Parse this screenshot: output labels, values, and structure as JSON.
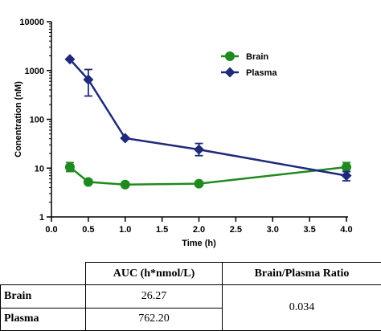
{
  "chart_data": {
    "type": "line",
    "xlabel": "Time (h)",
    "ylabel": "Conentration (nM)",
    "xlim": [
      0.0,
      4.0
    ],
    "ylim": [
      1,
      10000
    ],
    "yscale": "log",
    "x_ticks": [
      "0.0",
      "0.5",
      "1.0",
      "1.5",
      "2.0",
      "2.5",
      "3.0",
      "3.5",
      "4.0"
    ],
    "y_ticks": [
      "1",
      "10",
      "100",
      "1000",
      "10000"
    ],
    "legend_position": "top-right",
    "series": [
      {
        "name": "Brain",
        "color": "#1f8a1f",
        "marker": "circle",
        "points": [
          {
            "x": 0.25,
            "y": 10.5,
            "err_low": 8.5,
            "err_high": 13
          },
          {
            "x": 0.5,
            "y": 5.2
          },
          {
            "x": 1.0,
            "y": 4.6
          },
          {
            "x": 2.0,
            "y": 4.8
          },
          {
            "x": 4.0,
            "y": 10.5,
            "err_low": 8.5,
            "err_high": 13
          }
        ]
      },
      {
        "name": "Plasma",
        "color": "#1f2a7a",
        "marker": "diamond",
        "points": [
          {
            "x": 0.25,
            "y": 1700
          },
          {
            "x": 0.5,
            "y": 650,
            "err_low": 300,
            "err_high": 1050
          },
          {
            "x": 1.0,
            "y": 41
          },
          {
            "x": 2.0,
            "y": 24,
            "err_low": 18,
            "err_high": 32
          },
          {
            "x": 4.0,
            "y": 7,
            "err_low": 5.5,
            "err_high": 8.5
          }
        ]
      }
    ]
  },
  "table": {
    "headers": [
      "",
      "AUC (h*nmol/L)",
      "Brain/Plasma Ratio"
    ],
    "rows": [
      {
        "label": "Brain",
        "auc": "26.27"
      },
      {
        "label": "Plasma",
        "auc": "762.20"
      }
    ],
    "ratio": "0.034"
  }
}
